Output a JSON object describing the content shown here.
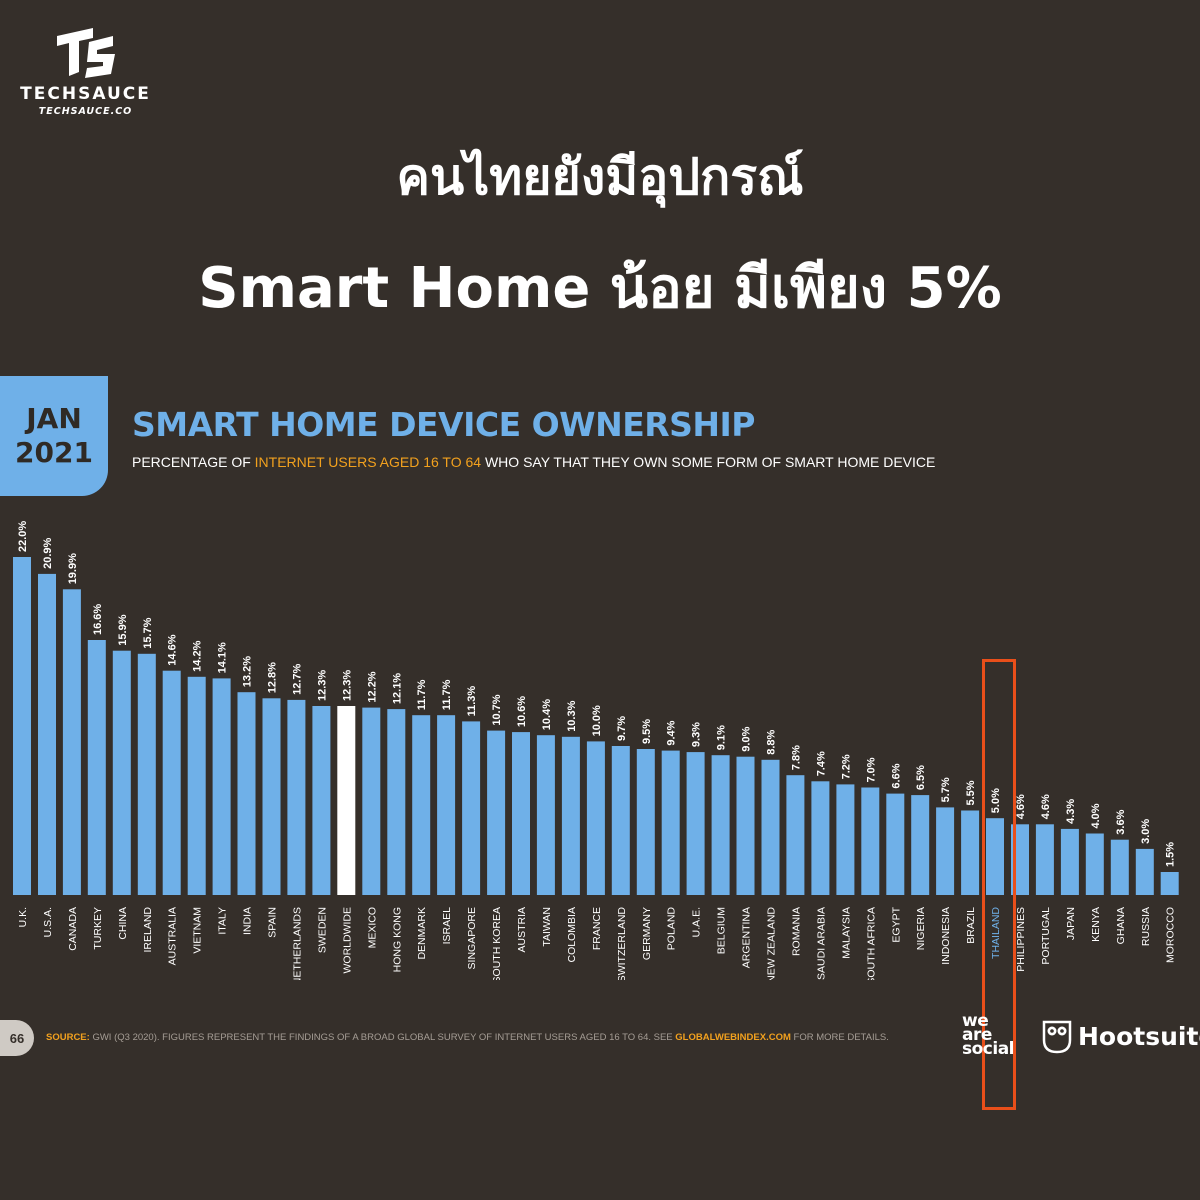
{
  "brand": {
    "name": "TECHSAUCE",
    "site": "TECHSAUCE.CO",
    "mark_icon": "techsauce-logo-icon"
  },
  "headline": {
    "line1": "คนไทยยังมีอุปกรณ์",
    "line2": "Smart Home น้อย มีเพียง 5%"
  },
  "report": {
    "month": "JAN",
    "year": "2021",
    "page_number": "66"
  },
  "source": {
    "label": "SOURCE:",
    "text": "GWI (Q3 2020). FIGURES REPRESENT THE FINDINGS OF A BROAD GLOBAL SURVEY OF INTERNET USERS AGED 16 TO 64. SEE",
    "link": "GLOBALWEBINDEX.COM",
    "suffix": "FOR MORE DETAILS."
  },
  "partners": {
    "we_are_social": [
      "we",
      "are",
      "social"
    ],
    "hootsuite": "Hootsuite",
    "hootsuite_icon": "owl-icon"
  },
  "colors": {
    "background": "#352f2a",
    "bar": "#6fb0e8",
    "worldwide_bar": "#ffffff",
    "accent": "#f2a11e",
    "highlight_box": "#e94f1a"
  },
  "chart_data": {
    "type": "bar",
    "title": "SMART HOME DEVICE OWNERSHIP",
    "subtitle_parts": [
      "PERCENTAGE OF ",
      "INTERNET USERS AGED 16 TO 64",
      " WHO SAY THAT THEY OWN SOME FORM OF SMART HOME DEVICE"
    ],
    "categories": [
      "U.K.",
      "U.S.A.",
      "CANADA",
      "TURKEY",
      "CHINA",
      "IRELAND",
      "AUSTRALIA",
      "VIETNAM",
      "ITALY",
      "INDIA",
      "SPAIN",
      "NETHERLANDS",
      "SWEDEN",
      "WORLDWIDE",
      "MEXICO",
      "HONG KONG",
      "DENMARK",
      "ISRAEL",
      "SINGAPORE",
      "SOUTH KOREA",
      "AUSTRIA",
      "TAIWAN",
      "COLOMBIA",
      "FRANCE",
      "SWITZERLAND",
      "GERMANY",
      "POLAND",
      "U.A.E.",
      "BELGIUM",
      "ARGENTINA",
      "NEW ZEALAND",
      "ROMANIA",
      "SAUDI ARABIA",
      "MALAYSIA",
      "SOUTH AFRICA",
      "EGYPT",
      "NIGERIA",
      "INDONESIA",
      "BRAZIL",
      "THAILAND",
      "PHILIPPINES",
      "PORTUGAL",
      "JAPAN",
      "KENYA",
      "GHANA",
      "RUSSIA",
      "MOROCCO"
    ],
    "values": [
      22.0,
      20.9,
      19.9,
      16.6,
      15.9,
      15.7,
      14.6,
      14.2,
      14.1,
      13.2,
      12.8,
      12.7,
      12.3,
      12.3,
      12.2,
      12.1,
      11.7,
      11.7,
      11.3,
      10.7,
      10.6,
      10.4,
      10.3,
      10.0,
      9.7,
      9.5,
      9.4,
      9.3,
      9.1,
      9.0,
      8.8,
      7.8,
      7.4,
      7.2,
      7.0,
      6.6,
      6.5,
      5.7,
      5.5,
      5.0,
      4.6,
      4.6,
      4.3,
      4.0,
      3.6,
      3.0,
      1.5
    ],
    "labels": [
      "22.0%",
      "20.9%",
      "19.9%",
      "16.6%",
      "15.9%",
      "15.7%",
      "14.6%",
      "14.2%",
      "14.1%",
      "13.2%",
      "12.8%",
      "12.7%",
      "12.3%",
      "12.3%",
      "12.2%",
      "12.1%",
      "11.7%",
      "11.7%",
      "11.3%",
      "10.7%",
      "10.6%",
      "10.4%",
      "10.3%",
      "10.0%",
      "9.7%",
      "9.5%",
      "9.4%",
      "9.3%",
      "9.1%",
      "9.0%",
      "8.8%",
      "7.8%",
      "7.4%",
      "7.2%",
      "7.0%",
      "6.6%",
      "6.5%",
      "5.7%",
      "5.5%",
      "5.0%",
      "4.6%",
      "4.6%",
      "4.3%",
      "4.0%",
      "3.6%",
      "3.0%",
      "1.5%"
    ],
    "unit": "%",
    "highlight_category": "WORLDWIDE",
    "emphasized_category": "THAILAND",
    "ylim": [
      0,
      22
    ],
    "grid": false,
    "legend": "none"
  }
}
